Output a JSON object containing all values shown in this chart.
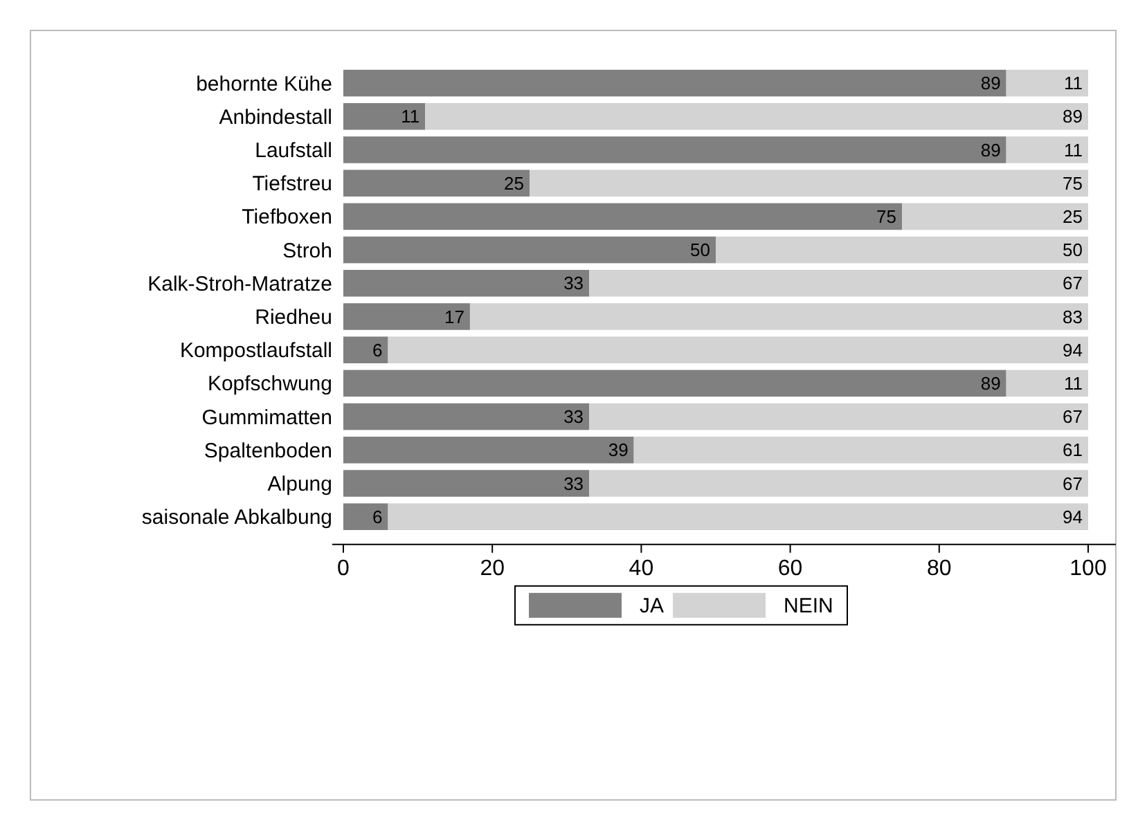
{
  "chart_data": {
    "type": "bar",
    "orientation": "horizontal",
    "stacked": true,
    "data_labels": true,
    "legend": "bottom",
    "grid": false,
    "categories": [
      "behornte Kühe",
      "Anbindestall",
      "Laufstall",
      "Tiefstreu",
      "Tiefboxen",
      "Stroh",
      "Kalk-Stroh-Matratze",
      "Riedheu",
      "Kompostlaufstall",
      "Kopfschwung",
      "Gummimatten",
      "Spaltenboden",
      "Alpung",
      "saisonale Abkalbung"
    ],
    "series": [
      {
        "name": "JA",
        "color": "#808080",
        "values": [
          89,
          11,
          89,
          25,
          75,
          50,
          33,
          17,
          6,
          89,
          33,
          39,
          33,
          6
        ]
      },
      {
        "name": "NEIN",
        "color": "#d3d3d3",
        "values": [
          11,
          89,
          11,
          75,
          25,
          50,
          67,
          83,
          94,
          11,
          67,
          61,
          67,
          94
        ]
      }
    ],
    "xlim": [
      0,
      100
    ],
    "xticks": [
      0,
      20,
      40,
      60,
      80,
      100
    ]
  }
}
